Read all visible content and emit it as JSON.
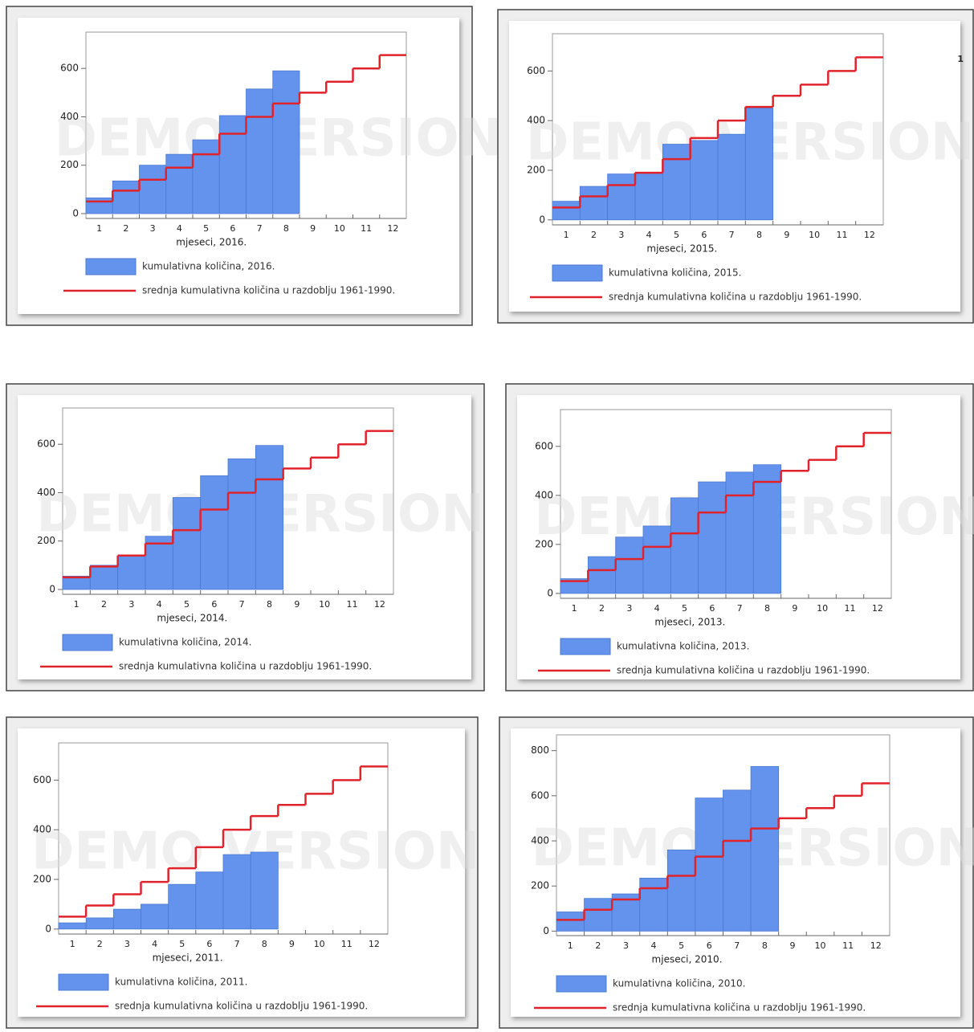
{
  "chart_data": [
    {
      "type": "bar",
      "x_label": "mjeseci, 2016.",
      "watermark": "DEMO VERSION",
      "categories": [
        "1",
        "2",
        "3",
        "4",
        "5",
        "6",
        "7",
        "8",
        "9",
        "10",
        "11",
        "12"
      ],
      "series": [
        {
          "name": "kumulativna količina, 2016.",
          "color": "#6493ee",
          "values": [
            65,
            135,
            200,
            245,
            305,
            405,
            515,
            590,
            null,
            null,
            null,
            null
          ]
        },
        {
          "name": "srednja kumulativna količina u razdoblju 1961-1990.",
          "color": "#e0232b",
          "type": "step",
          "values": [
            50,
            95,
            140,
            190,
            245,
            330,
            400,
            455,
            500,
            545,
            600,
            655
          ]
        }
      ],
      "ylim": [
        -20,
        750
      ],
      "yticks": [
        0,
        200,
        400,
        600
      ]
    },
    {
      "type": "bar",
      "x_label": "mjeseci, 2015.",
      "watermark": "DEMO VERSION",
      "annotation": "1",
      "categories": [
        "1",
        "2",
        "3",
        "4",
        "5",
        "6",
        "7",
        "8",
        "9",
        "10",
        "11",
        "12"
      ],
      "series": [
        {
          "name": "kumulativna količina, 2015.",
          "color": "#6493ee",
          "values": [
            75,
            135,
            185,
            190,
            305,
            320,
            345,
            450,
            null,
            null,
            null,
            null
          ]
        },
        {
          "name": "srednja kumulativna količina u razdoblju 1961-1990.",
          "color": "#e0232b",
          "type": "step",
          "values": [
            50,
            95,
            140,
            190,
            245,
            330,
            400,
            455,
            500,
            545,
            600,
            655
          ]
        }
      ],
      "ylim": [
        -20,
        750
      ],
      "yticks": [
        0,
        200,
        400,
        600
      ]
    },
    {
      "type": "bar",
      "x_label": "mjeseci, 2014.",
      "watermark": "DEMO VERSION",
      "categories": [
        "1",
        "2",
        "3",
        "4",
        "5",
        "6",
        "7",
        "8",
        "9",
        "10",
        "11",
        "12"
      ],
      "series": [
        {
          "name": "kumulativna količina, 2014.",
          "color": "#6493ee",
          "values": [
            55,
            100,
            140,
            220,
            380,
            470,
            540,
            595,
            null,
            null,
            null,
            null
          ]
        },
        {
          "name": "srednja kumulativna količina u razdoblju 1961-1990.",
          "color": "#e0232b",
          "type": "step",
          "values": [
            50,
            95,
            140,
            190,
            245,
            330,
            400,
            455,
            500,
            545,
            600,
            655
          ]
        }
      ],
      "ylim": [
        -20,
        750
      ],
      "yticks": [
        0,
        200,
        400,
        600
      ]
    },
    {
      "type": "bar",
      "x_label": "mjeseci, 2013.",
      "watermark": "DEMO VERSION",
      "categories": [
        "1",
        "2",
        "3",
        "4",
        "5",
        "6",
        "7",
        "8",
        "9",
        "10",
        "11",
        "12"
      ],
      "series": [
        {
          "name": "kumulativna količina, 2013.",
          "color": "#6493ee",
          "values": [
            60,
            150,
            230,
            275,
            390,
            455,
            495,
            525,
            null,
            null,
            null,
            null
          ]
        },
        {
          "name": "srednja kumulativna količina u razdoblju 1961-1990.",
          "color": "#e0232b",
          "type": "step",
          "values": [
            50,
            95,
            140,
            190,
            245,
            330,
            400,
            455,
            500,
            545,
            600,
            655
          ]
        }
      ],
      "ylim": [
        -20,
        750
      ],
      "yticks": [
        0,
        200,
        400,
        600
      ]
    },
    {
      "type": "bar",
      "x_label": "mjeseci, 2011.",
      "watermark": "DEMO VERSION",
      "categories": [
        "1",
        "2",
        "3",
        "4",
        "5",
        "6",
        "7",
        "8",
        "9",
        "10",
        "11",
        "12"
      ],
      "series": [
        {
          "name": "kumulativna količina, 2011.",
          "color": "#6493ee",
          "values": [
            25,
            45,
            80,
            100,
            180,
            230,
            300,
            310,
            null,
            null,
            null,
            null
          ]
        },
        {
          "name": "srednja kumulativna količina u razdoblju 1961-1990.",
          "color": "#e0232b",
          "type": "step",
          "values": [
            50,
            95,
            140,
            190,
            245,
            330,
            400,
            455,
            500,
            545,
            600,
            655
          ]
        }
      ],
      "ylim": [
        -20,
        750
      ],
      "yticks": [
        0,
        200,
        400,
        600
      ]
    },
    {
      "type": "bar",
      "x_label": "mjeseci, 2010.",
      "watermark": "DEMO VERSION",
      "categories": [
        "1",
        "2",
        "3",
        "4",
        "5",
        "6",
        "7",
        "8",
        "9",
        "10",
        "11",
        "12"
      ],
      "series": [
        {
          "name": "kumulativna količina, 2010.",
          "color": "#6493ee",
          "values": [
            85,
            145,
            165,
            235,
            360,
            590,
            625,
            730,
            null,
            null,
            null,
            null
          ]
        },
        {
          "name": "srednja kumulativna količina u razdoblju 1961-1990.",
          "color": "#e0232b",
          "type": "step",
          "values": [
            50,
            95,
            140,
            190,
            245,
            330,
            400,
            455,
            500,
            545,
            600,
            655
          ]
        }
      ],
      "ylim": [
        -20,
        870
      ],
      "yticks": [
        0,
        200,
        400,
        600,
        800
      ]
    }
  ]
}
